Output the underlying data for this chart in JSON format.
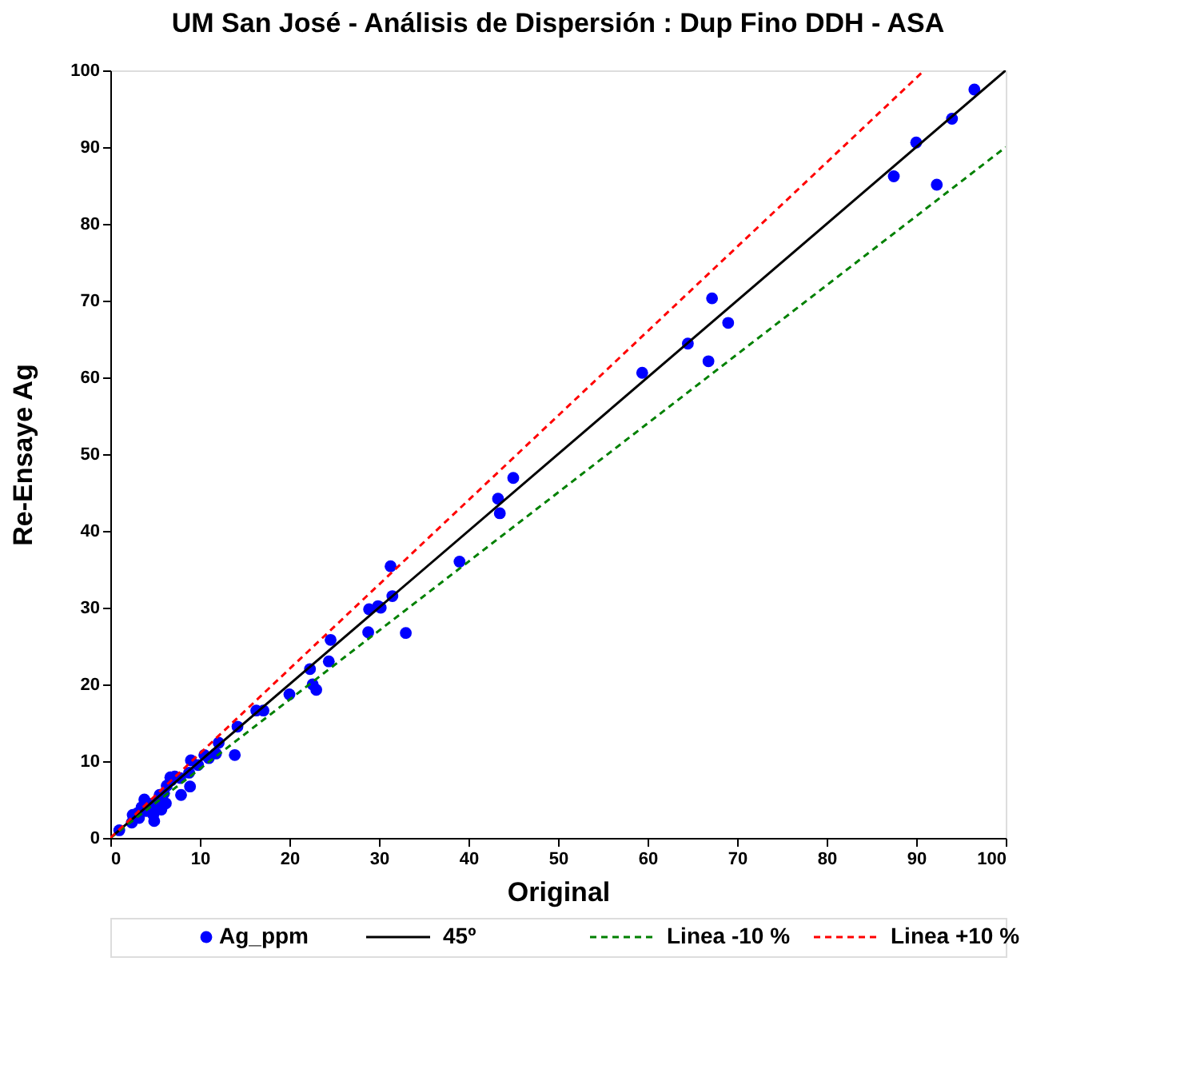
{
  "chart_data": {
    "type": "scatter",
    "title": "UM San José - Análisis de Dispersión :  Dup Fino DDH - ASA",
    "xlabel": "Original",
    "ylabel": "Re-Ensaye Ag",
    "xlim": [
      0,
      100
    ],
    "ylim": [
      0,
      100
    ],
    "xticks": [
      0,
      10,
      20,
      30,
      40,
      50,
      60,
      70,
      80,
      90,
      100
    ],
    "yticks": [
      0,
      10,
      20,
      30,
      40,
      50,
      60,
      70,
      80,
      90,
      100
    ],
    "grid": false,
    "legend": "bottom",
    "series": [
      {
        "name": "Ag_ppm",
        "type": "scatter",
        "marker": "circle",
        "color": "#0000ff",
        "x": [
          96.5,
          94,
          90,
          87.5,
          92.3,
          67.2,
          69,
          64.5,
          66.8,
          59.4,
          45,
          43.3,
          43.5,
          39,
          31.3,
          31.5,
          29.9,
          28.9,
          30.2,
          28.8,
          33,
          24.6,
          24.4,
          22.3,
          22.6,
          23,
          20,
          17.1,
          16.3,
          14.2,
          13.9,
          12.1,
          11.8,
          11,
          10.5,
          9.8,
          9,
          8.8,
          8.9,
          7.9,
          7.8,
          7.2,
          6.8,
          6.3,
          6.7,
          6,
          5.5,
          5.2,
          5,
          4.8,
          4.9,
          4.2,
          4,
          3.8,
          3.5,
          3.2,
          3,
          2.5,
          2.4,
          1,
          6.2,
          5.7
        ],
        "values": [
          97.5,
          93.7,
          90.6,
          86.2,
          85.1,
          70.3,
          67.1,
          64.4,
          62.1,
          60.6,
          46.9,
          44.2,
          42.3,
          36,
          35.4,
          31.5,
          30.2,
          29.8,
          30,
          26.8,
          26.7,
          25.8,
          23,
          22,
          20,
          19.3,
          18.7,
          16.6,
          16.6,
          14.5,
          10.8,
          12.4,
          11,
          10.4,
          10.8,
          9.5,
          10.1,
          8.5,
          6.7,
          5.6,
          7.8,
          8,
          7.5,
          6.8,
          7.9,
          5.8,
          5.6,
          4.8,
          4,
          3,
          2.2,
          4.5,
          3.5,
          5,
          4,
          2.6,
          3.2,
          3,
          2,
          1,
          4.5,
          3.7
        ]
      },
      {
        "name": "45º",
        "type": "line",
        "marker": "none",
        "line_style": "solid",
        "color": "#000000",
        "x": [
          0,
          100
        ],
        "values": [
          0,
          100
        ]
      },
      {
        "name": "Linea -10 %",
        "type": "line",
        "marker": "none",
        "line_style": "dashed",
        "color": "#008000",
        "x": [
          0,
          100
        ],
        "values": [
          0,
          90
        ]
      },
      {
        "name": "Linea +10 %",
        "type": "line",
        "marker": "none",
        "line_style": "dashed",
        "color": "#ff0000",
        "x": [
          0,
          90.9
        ],
        "values": [
          0,
          100
        ]
      }
    ]
  }
}
